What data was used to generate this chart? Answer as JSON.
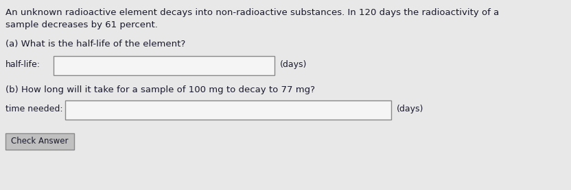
{
  "bg_color": "#e8e8e8",
  "text_color": "#1a1a2e",
  "line1": "An unknown radioactive element decays into non-radioactive substances. In 120 days the radioactivity of a",
  "line2": "sample decreases by 61 percent.",
  "part_a_question": "(a) What is the half-life of the element?",
  "part_a_label": "half-life:",
  "part_a_unit": "(days)",
  "part_b_question": "(b) How long will it take for a sample of 100 mg to decay to 77 mg?",
  "part_b_label": "time needed:",
  "part_b_unit": "(days)",
  "button_text": "Check Answer",
  "box_facecolor": "#f5f5f5",
  "box_edgecolor": "#888888",
  "button_facecolor": "#c0c0c0",
  "button_edgecolor": "#888888",
  "font_size_main": 9.5,
  "font_size_label": 9.0,
  "font_size_button": 8.5,
  "fig_width": 8.32,
  "fig_height": 2.78,
  "dpi": 100
}
